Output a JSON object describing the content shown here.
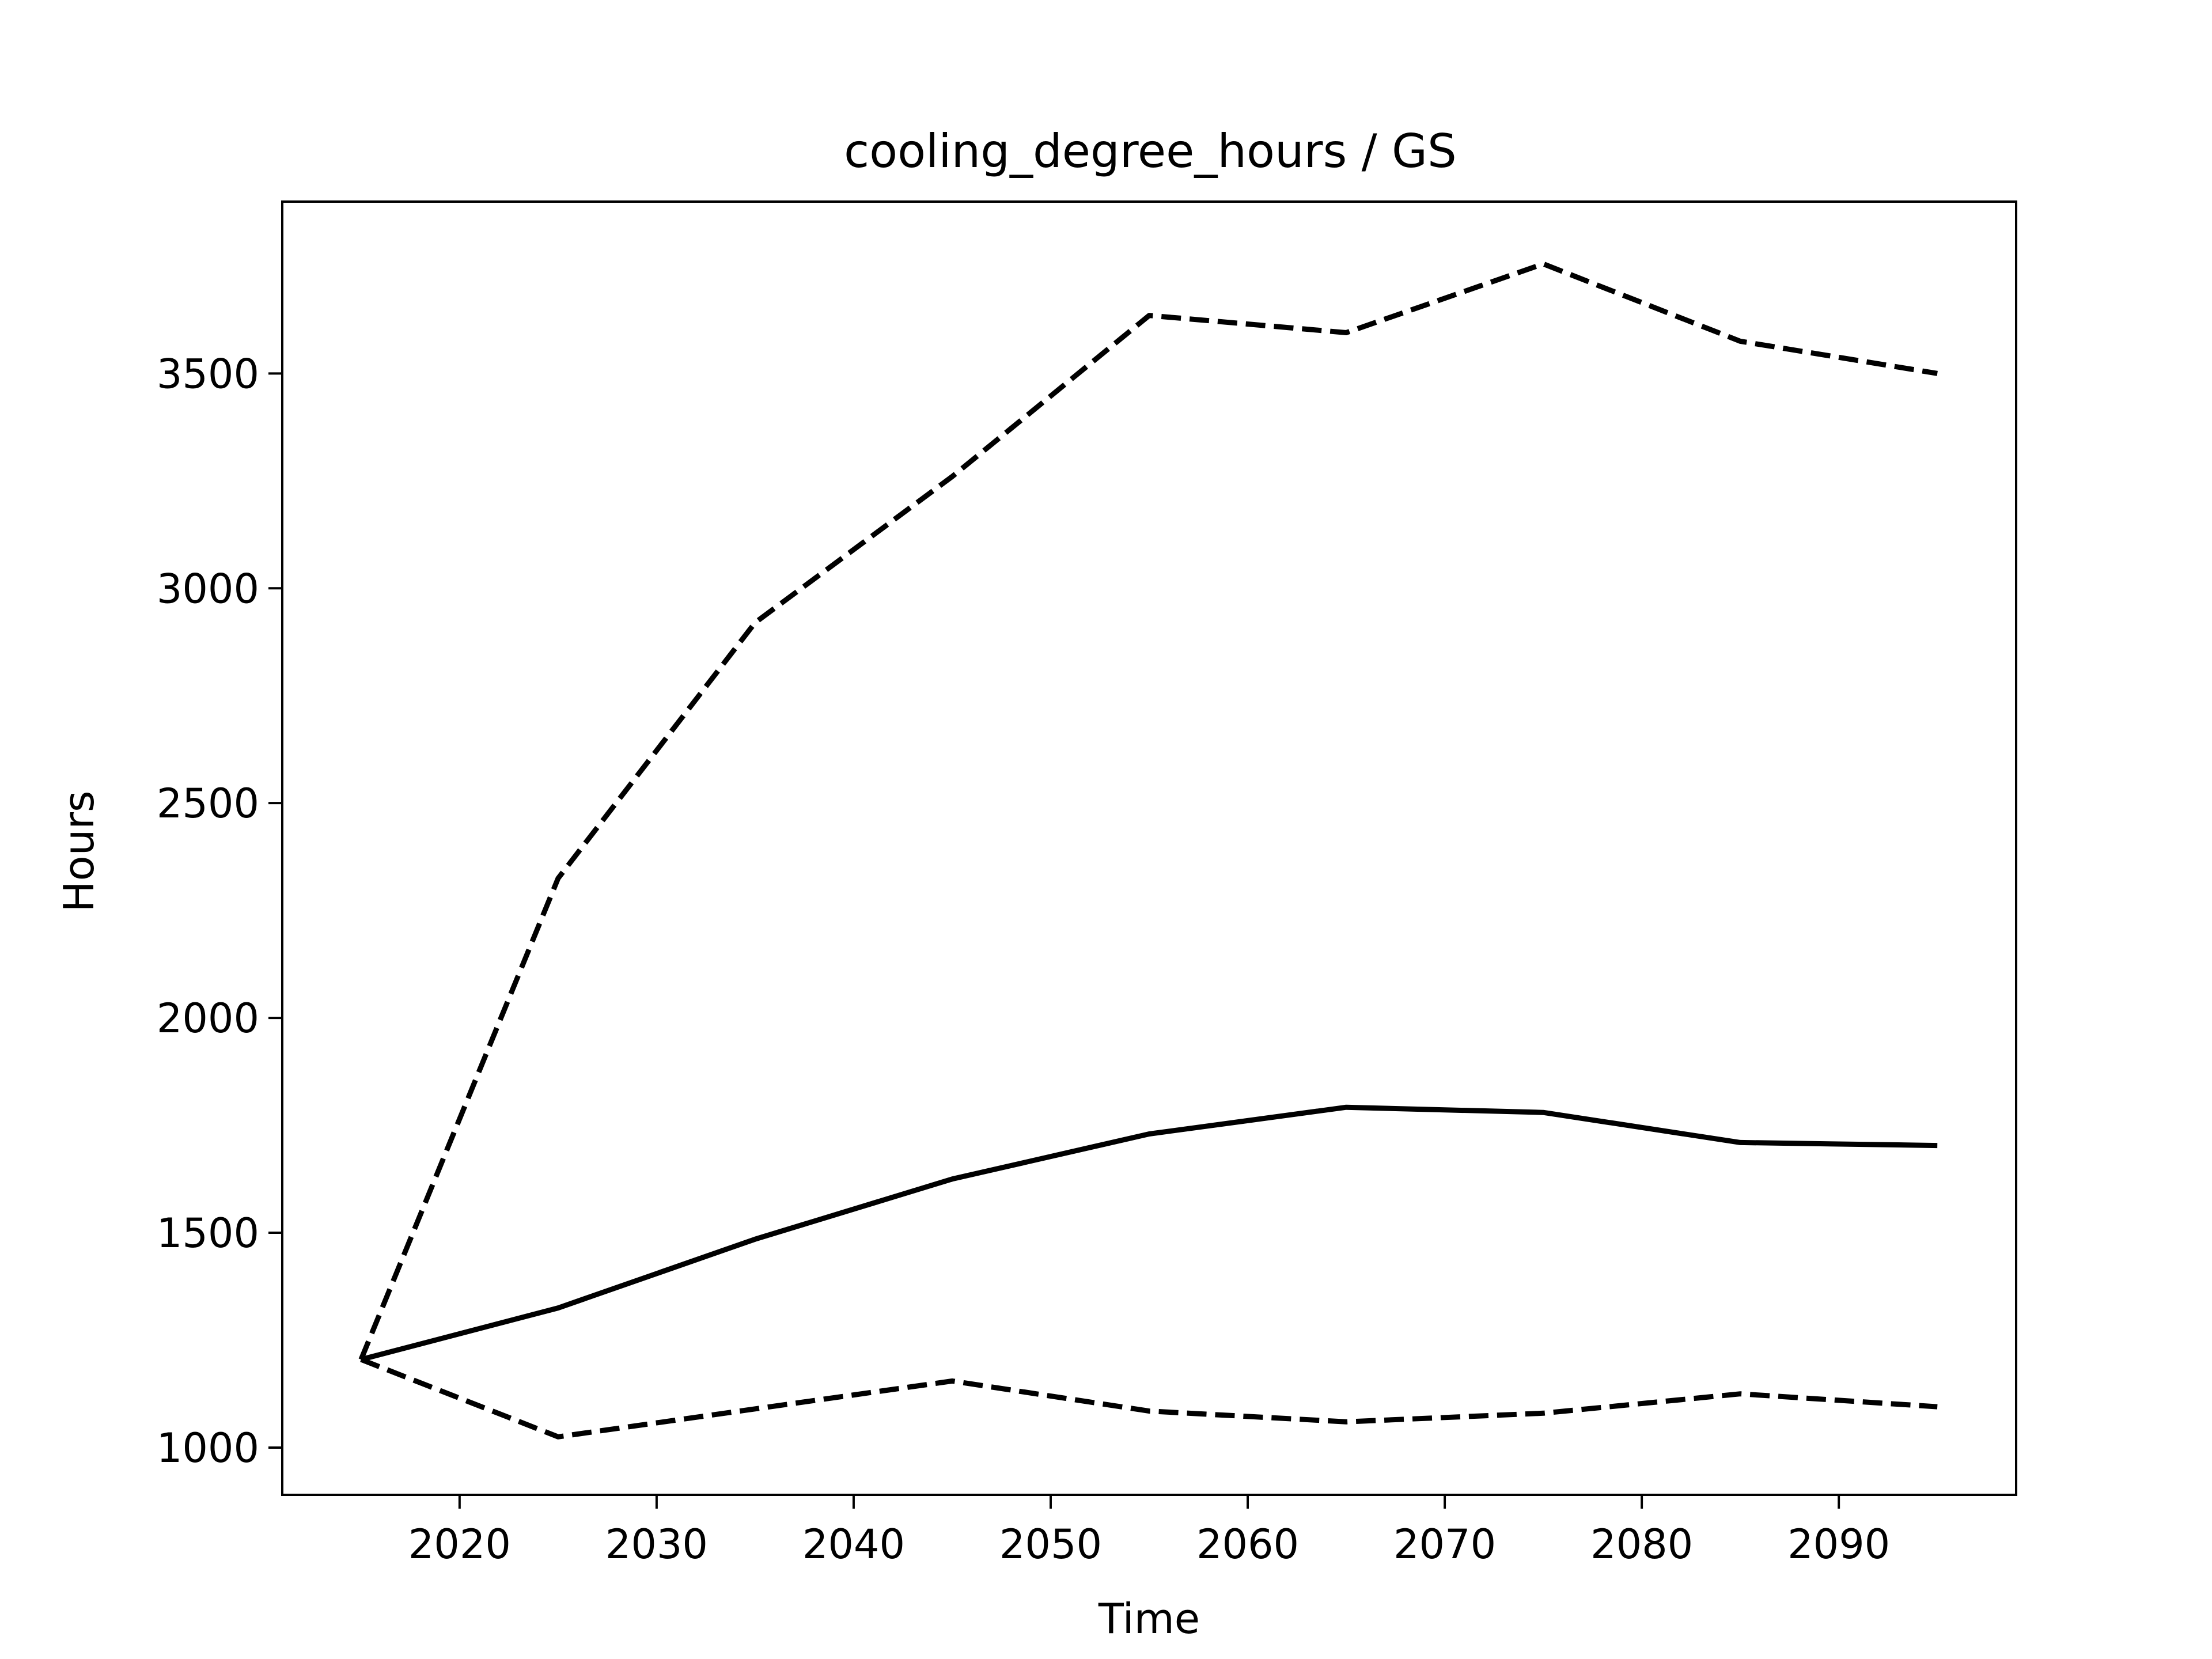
{
  "chart_data": {
    "type": "line",
    "title": "cooling_degree_hours / GS",
    "xlabel": "Time",
    "ylabel": "Hours",
    "xlim": [
      2011,
      2099
    ],
    "ylim": [
      890,
      3900
    ],
    "x_ticks": [
      2020,
      2030,
      2040,
      2050,
      2060,
      2070,
      2080,
      2090
    ],
    "y_ticks": [
      1000,
      1500,
      2000,
      2500,
      3000,
      3500
    ],
    "x_tick_labels": [
      "2020",
      "2030",
      "2040",
      "2050",
      "2060",
      "2070",
      "2080",
      "2090"
    ],
    "y_tick_labels": [
      "1000",
      "1500",
      "2000",
      "2500",
      "3000",
      "3500"
    ],
    "grid": false,
    "legend": false,
    "x": [
      2015,
      2025,
      2035,
      2045,
      2055,
      2065,
      2075,
      2085,
      2095
    ],
    "series": [
      {
        "style": "solid",
        "color": "#000000",
        "values": [
          1205,
          1325,
          1485,
          1625,
          1730,
          1792,
          1780,
          1710,
          1703
        ]
      },
      {
        "style": "dashed",
        "color": "#000000",
        "values": [
          1205,
          2325,
          2920,
          3260,
          3635,
          3595,
          3755,
          3575,
          3500
        ]
      },
      {
        "style": "dashed",
        "color": "#000000",
        "values": [
          1205,
          1025,
          1090,
          1155,
          1085,
          1060,
          1080,
          1125,
          1095
        ]
      }
    ]
  }
}
